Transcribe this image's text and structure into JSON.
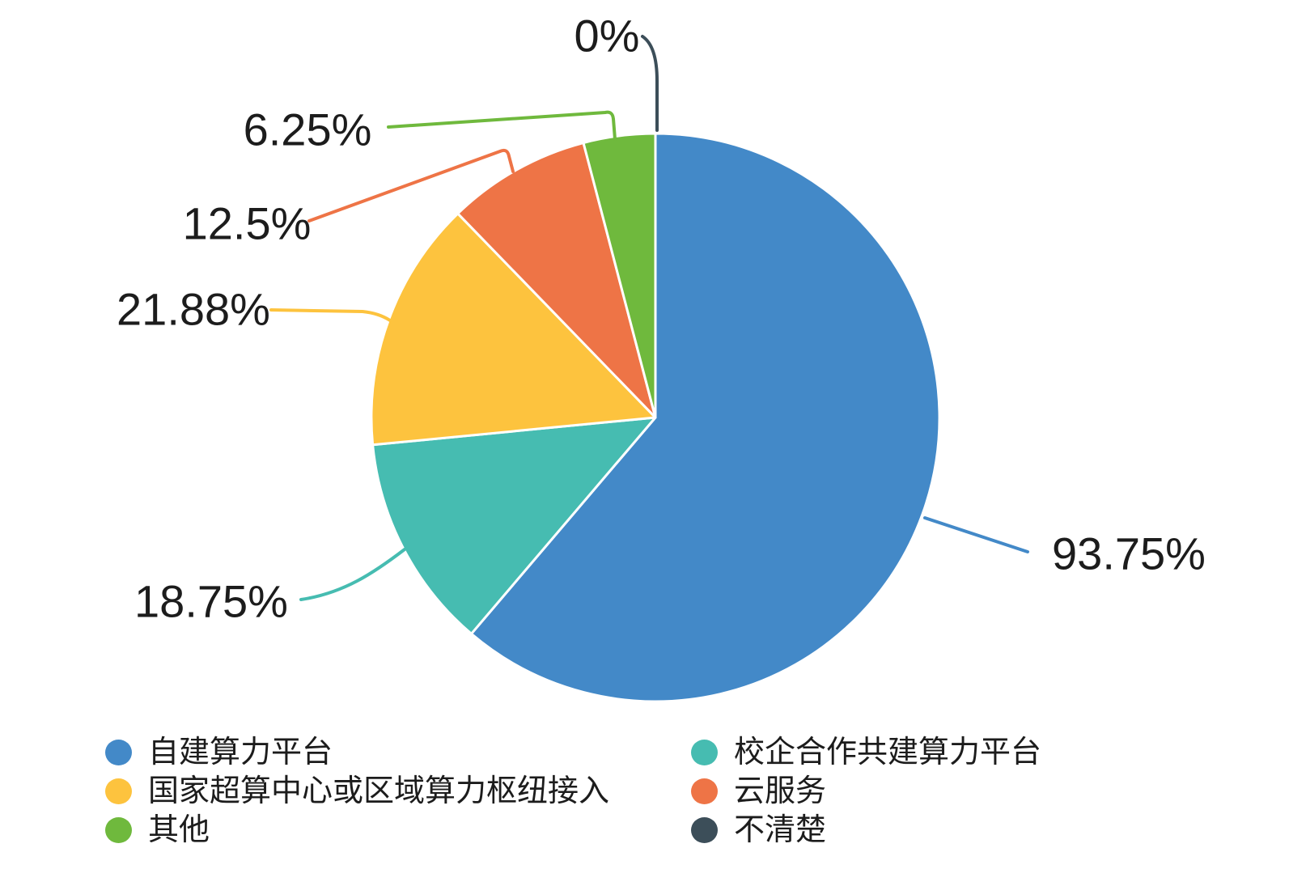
{
  "chart_data": {
    "type": "pie",
    "title": "",
    "legend_position": "bottom",
    "slices": [
      {
        "label": "自建算力平台",
        "value": 93.75,
        "display": "93.75%",
        "color": "#4389c8"
      },
      {
        "label": "校企合作共建算力平台",
        "value": 18.75,
        "display": "18.75%",
        "color": "#46bcb1"
      },
      {
        "label": "国家超算中心或区域算力枢纽接入",
        "value": 21.88,
        "display": "21.88%",
        "color": "#fdc33e"
      },
      {
        "label": "云服务",
        "value": 12.5,
        "display": "12.5%",
        "color": "#ee7446"
      },
      {
        "label": "其他",
        "value": 6.25,
        "display": "6.25%",
        "color": "#6fb93d"
      },
      {
        "label": "不清楚",
        "value": 0,
        "display": "0%",
        "color": "#3c4e59"
      }
    ],
    "legend_columns": [
      [
        0,
        2,
        4
      ],
      [
        1,
        3,
        5
      ]
    ],
    "notes": "slices drawn clockwise from 12 o'clock; values normalized by their sum"
  }
}
